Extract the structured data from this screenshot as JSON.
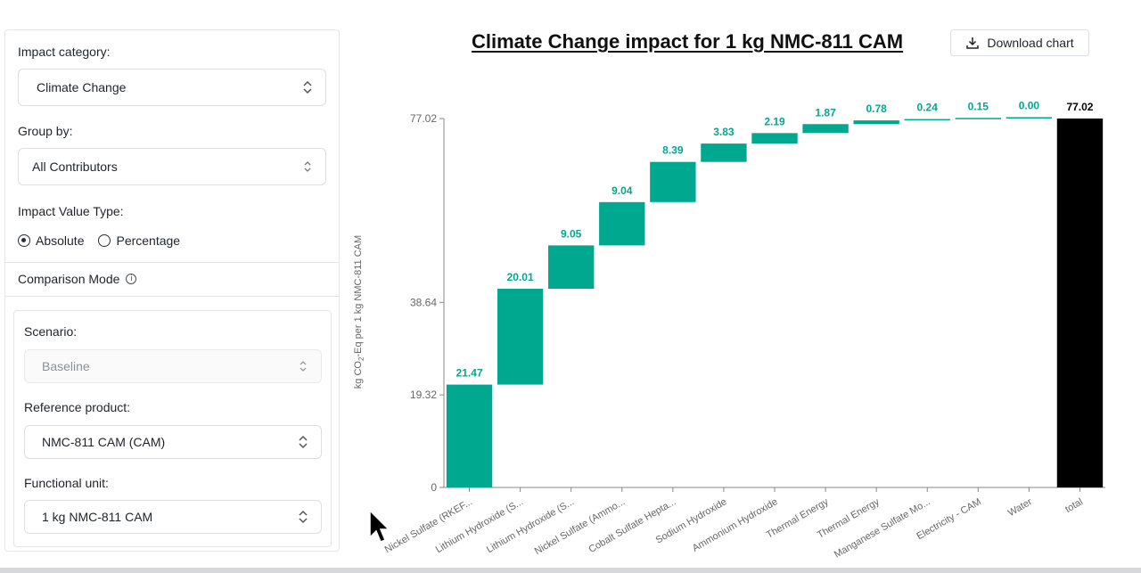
{
  "panel": {
    "impact_category": {
      "label": "Impact category:",
      "value": "Climate Change"
    },
    "group_by": {
      "label": "Group by:",
      "value": "All Contributors"
    },
    "value_type": {
      "label": "Impact Value Type:",
      "options": [
        "Absolute",
        "Percentage"
      ],
      "selected": "Absolute"
    },
    "comparison_mode": "Comparison Mode",
    "scenario": {
      "label": "Scenario:",
      "value": "Baseline"
    },
    "reference_product": {
      "label": "Reference product:",
      "value": "NMC-811 CAM (CAM)"
    },
    "functional_unit": {
      "label": "Functional unit:",
      "value": "1 kg NMC-811 CAM"
    }
  },
  "header": {
    "title": "Climate Change impact for 1 kg NMC-811 CAM",
    "download_label": "Download chart"
  },
  "colors": {
    "bar": "#00a88f",
    "total": "#000000",
    "axis": "#888888"
  },
  "chart_data": {
    "type": "waterfall",
    "title": "Climate Change impact for 1 kg NMC-811 CAM",
    "ylabel_parts": [
      "kg CO",
      "2",
      "-Eq per 1 kg NMC-811 CAM"
    ],
    "yticks": [
      0,
      19.32,
      38.64,
      77.02
    ],
    "ytick_labels": [
      "0",
      "19.32",
      "38.64",
      "77.02"
    ],
    "ylim": [
      0,
      77.02
    ],
    "categories": [
      "Nickel Sulfate (RKEF...",
      "Lithium Hydroxide (S...",
      "Lithium Hydroxide (S...",
      "Nickel Sulfate (Ammo...",
      "Cobalt Sulfate Hepta...",
      "Sodium Hydroxide",
      "Ammonium Hydroxide",
      "Thermal Energy",
      "Thermal Energy",
      "Manganese Sulfate Mo...",
      "Electricity - CAM",
      "Water",
      "total"
    ],
    "values": [
      21.47,
      20.01,
      9.05,
      9.04,
      8.39,
      3.83,
      2.19,
      1.87,
      0.78,
      0.24,
      0.15,
      0.0,
      77.02
    ],
    "value_labels": [
      "21.47",
      "20.01",
      "9.05",
      "9.04",
      "8.39",
      "3.83",
      "2.19",
      "1.87",
      "0.78",
      "0.24",
      "0.15",
      "0.00",
      "77.02"
    ],
    "total_index": 12
  }
}
